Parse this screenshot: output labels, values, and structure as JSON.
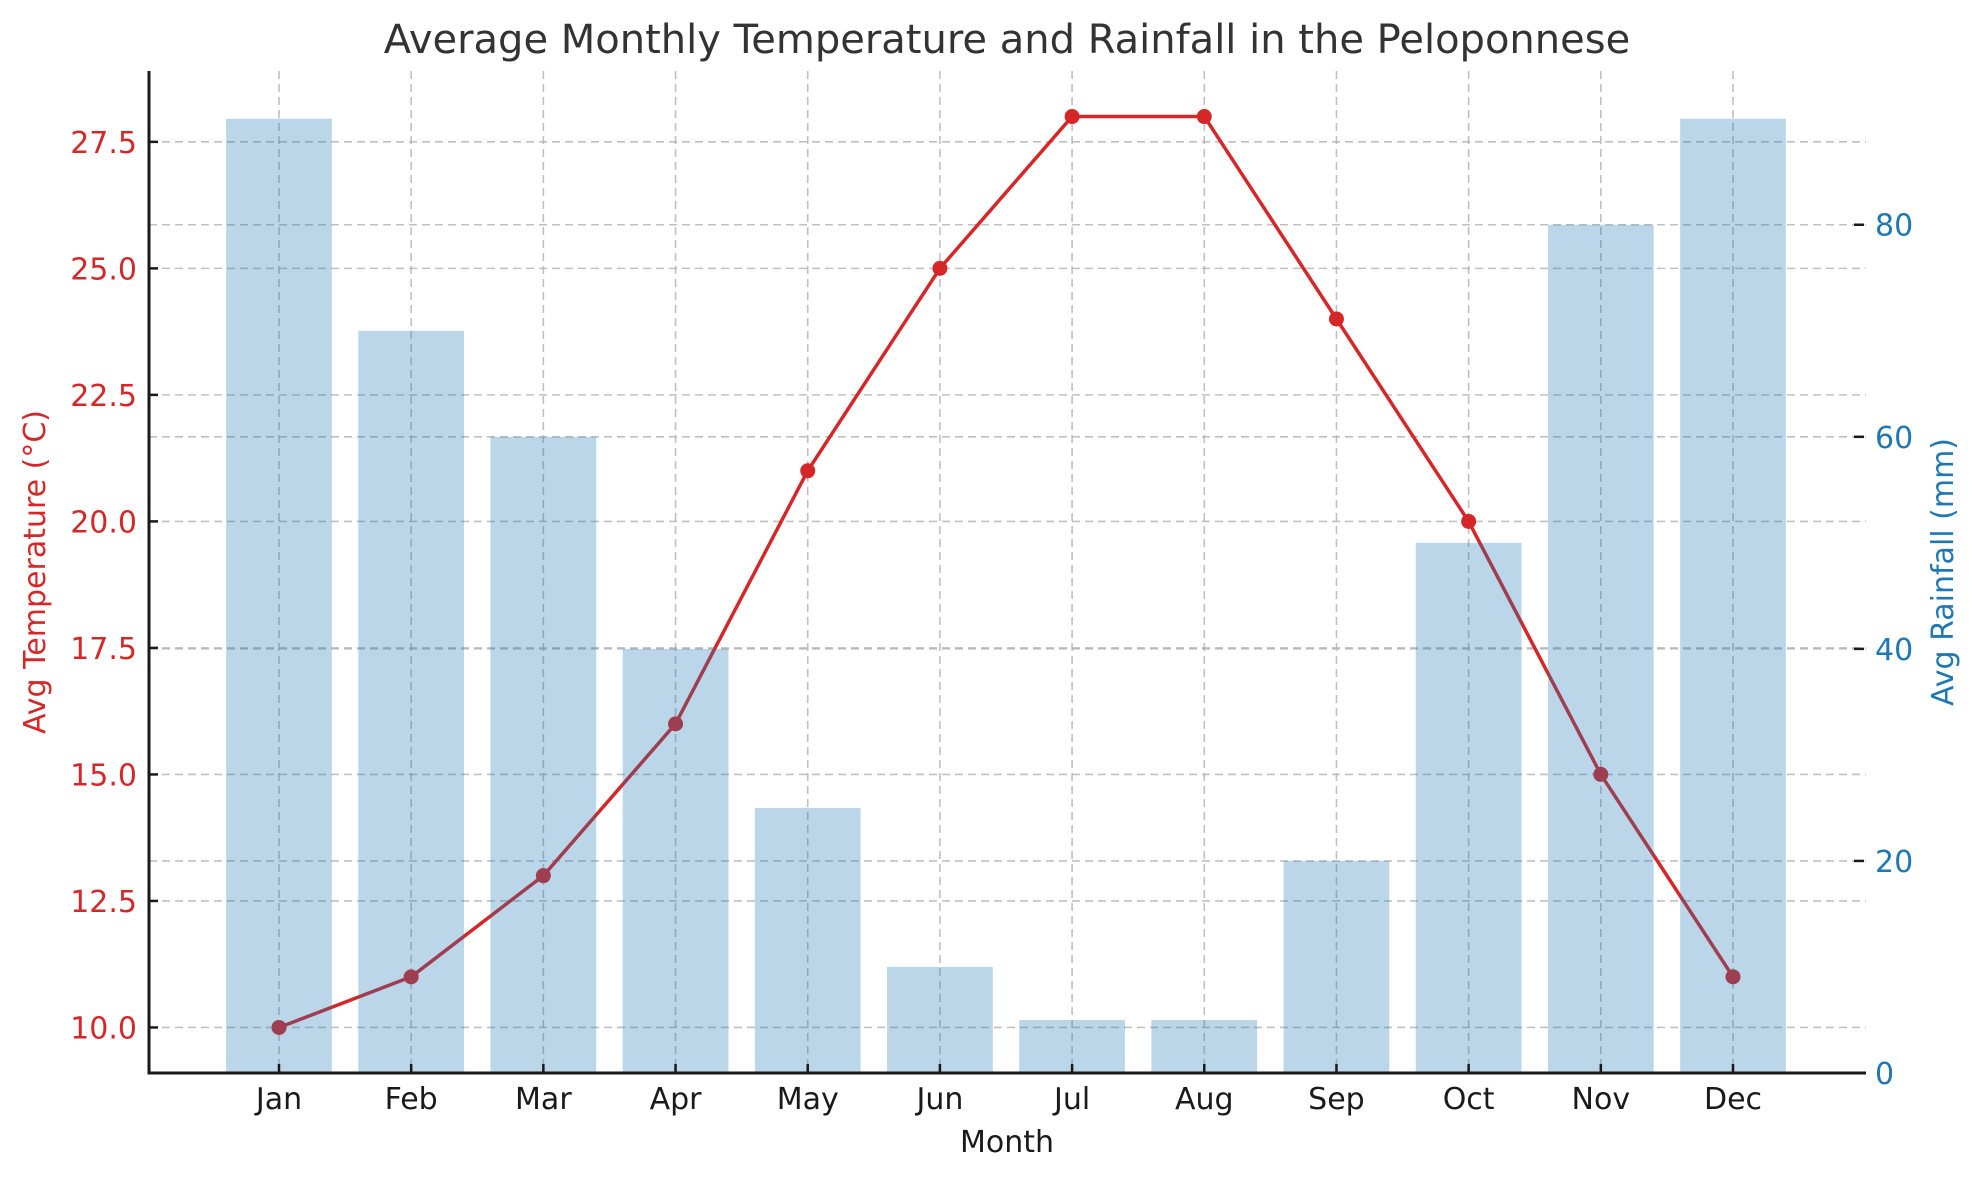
{
  "chart_data": {
    "type": "bar+line",
    "title": "Average Monthly Temperature and Rainfall in the Peloponnese",
    "xlabel": "Month",
    "categories": [
      "Jan",
      "Feb",
      "Mar",
      "Apr",
      "May",
      "Jun",
      "Jul",
      "Aug",
      "Sep",
      "Oct",
      "Nov",
      "Dec"
    ],
    "series": [
      {
        "name": "Avg Temperature (°C)",
        "type": "line",
        "axis": "left",
        "color": "#d62728",
        "marker": "circle",
        "values": [
          10,
          11,
          13,
          16,
          21,
          25,
          28,
          28,
          24,
          20,
          15,
          11
        ]
      },
      {
        "name": "Avg Rainfall (mm)",
        "type": "bar",
        "axis": "right",
        "color": "#1f77b4",
        "opacity": 0.3,
        "values": [
          90,
          70,
          60,
          40,
          25,
          10,
          5,
          5,
          20,
          50,
          80,
          90
        ]
      }
    ],
    "y_left": {
      "label": "Avg Temperature (°C)",
      "color": "#d62728",
      "ylim": [
        9.1,
        28.9
      ],
      "ticks": [
        10.0,
        12.5,
        15.0,
        17.5,
        20.0,
        22.5,
        25.0,
        27.5
      ],
      "tick_labels": [
        "10.0",
        "12.5",
        "15.0",
        "17.5",
        "20.0",
        "22.5",
        "25.0",
        "27.5"
      ]
    },
    "y_right": {
      "label": "Avg Rainfall (mm)",
      "color": "#1f77b4",
      "ylim": [
        0,
        94.5
      ],
      "ticks": [
        0,
        20,
        40,
        60,
        80
      ],
      "tick_labels": [
        "0",
        "20",
        "40",
        "60",
        "80"
      ]
    },
    "grid": true,
    "legend": "none"
  }
}
